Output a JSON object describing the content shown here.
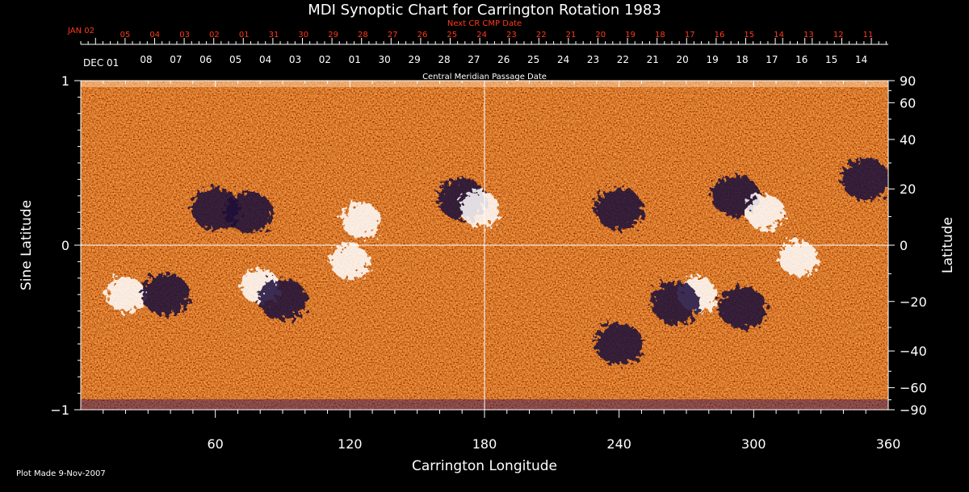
{
  "chart_data": {
    "type": "heatmap",
    "title": "MDI Synoptic Chart for Carrington Rotation 1983",
    "xlabel": "Carrington Longitude",
    "ylabel_left": "Sine Latitude",
    "ylabel_right": "Latitude",
    "xlim": [
      0,
      360
    ],
    "ylim": [
      -1,
      1
    ],
    "x_ticks": [
      60,
      120,
      180,
      240,
      300,
      360
    ],
    "y_ticks_left": [
      "1",
      "0",
      "−1"
    ],
    "y_ticks_right": [
      "90",
      "60",
      "40",
      "20",
      "0",
      "−20",
      "−40",
      "−60",
      "−90"
    ],
    "y_ticks_right_values": [
      90,
      60,
      40,
      20,
      0,
      -20,
      -40,
      -60,
      -90
    ],
    "grid": "cross at longitude 180 and sine latitude 0",
    "top_axis_upper": {
      "caption": "Next CR CMP Date",
      "start_label": "JAN 02",
      "labels": [
        "05",
        "04",
        "03",
        "02",
        "01",
        "31",
        "30",
        "29",
        "28",
        "27",
        "26",
        "25",
        "24",
        "23",
        "22",
        "21",
        "20",
        "19",
        "18",
        "17",
        "16",
        "15",
        "14",
        "13",
        "12",
        "11"
      ]
    },
    "top_axis_lower": {
      "caption": "Central Meridian Passage Date",
      "start_label": "DEC 01",
      "labels": [
        "08",
        "07",
        "06",
        "05",
        "04",
        "03",
        "02",
        "01",
        "30",
        "29",
        "28",
        "27",
        "26",
        "25",
        "24",
        "23",
        "22",
        "21",
        "20",
        "19",
        "18",
        "17",
        "16",
        "15",
        "14"
      ]
    },
    "colors": {
      "background": "#000000",
      "map_base": "#ff5500",
      "positive_polarity": "#ffffff",
      "negative_polarity": "#1a0a3a",
      "next_cr_axis": "#ff3a1a"
    },
    "regions": [
      {
        "lon": 60,
        "sinlat": 0.22,
        "polarity": "negative"
      },
      {
        "lon": 75,
        "sinlat": 0.2,
        "polarity": "negative"
      },
      {
        "lon": 125,
        "sinlat": 0.15,
        "polarity": "positive"
      },
      {
        "lon": 170,
        "sinlat": 0.28,
        "polarity": "negative"
      },
      {
        "lon": 178,
        "sinlat": 0.22,
        "polarity": "positive"
      },
      {
        "lon": 240,
        "sinlat": 0.22,
        "polarity": "negative"
      },
      {
        "lon": 292,
        "sinlat": 0.3,
        "polarity": "negative"
      },
      {
        "lon": 305,
        "sinlat": 0.2,
        "polarity": "positive"
      },
      {
        "lon": 350,
        "sinlat": 0.4,
        "polarity": "negative"
      },
      {
        "lon": 20,
        "sinlat": -0.3,
        "polarity": "positive"
      },
      {
        "lon": 38,
        "sinlat": -0.3,
        "polarity": "negative"
      },
      {
        "lon": 80,
        "sinlat": -0.25,
        "polarity": "positive"
      },
      {
        "lon": 90,
        "sinlat": -0.33,
        "polarity": "negative"
      },
      {
        "lon": 120,
        "sinlat": -0.1,
        "polarity": "positive"
      },
      {
        "lon": 275,
        "sinlat": -0.3,
        "polarity": "positive"
      },
      {
        "lon": 265,
        "sinlat": -0.35,
        "polarity": "negative"
      },
      {
        "lon": 295,
        "sinlat": -0.38,
        "polarity": "negative"
      },
      {
        "lon": 320,
        "sinlat": -0.08,
        "polarity": "positive"
      },
      {
        "lon": 240,
        "sinlat": -0.6,
        "polarity": "negative"
      }
    ]
  },
  "footer": {
    "plot_made": "Plot Made  9-Nov-2007"
  }
}
